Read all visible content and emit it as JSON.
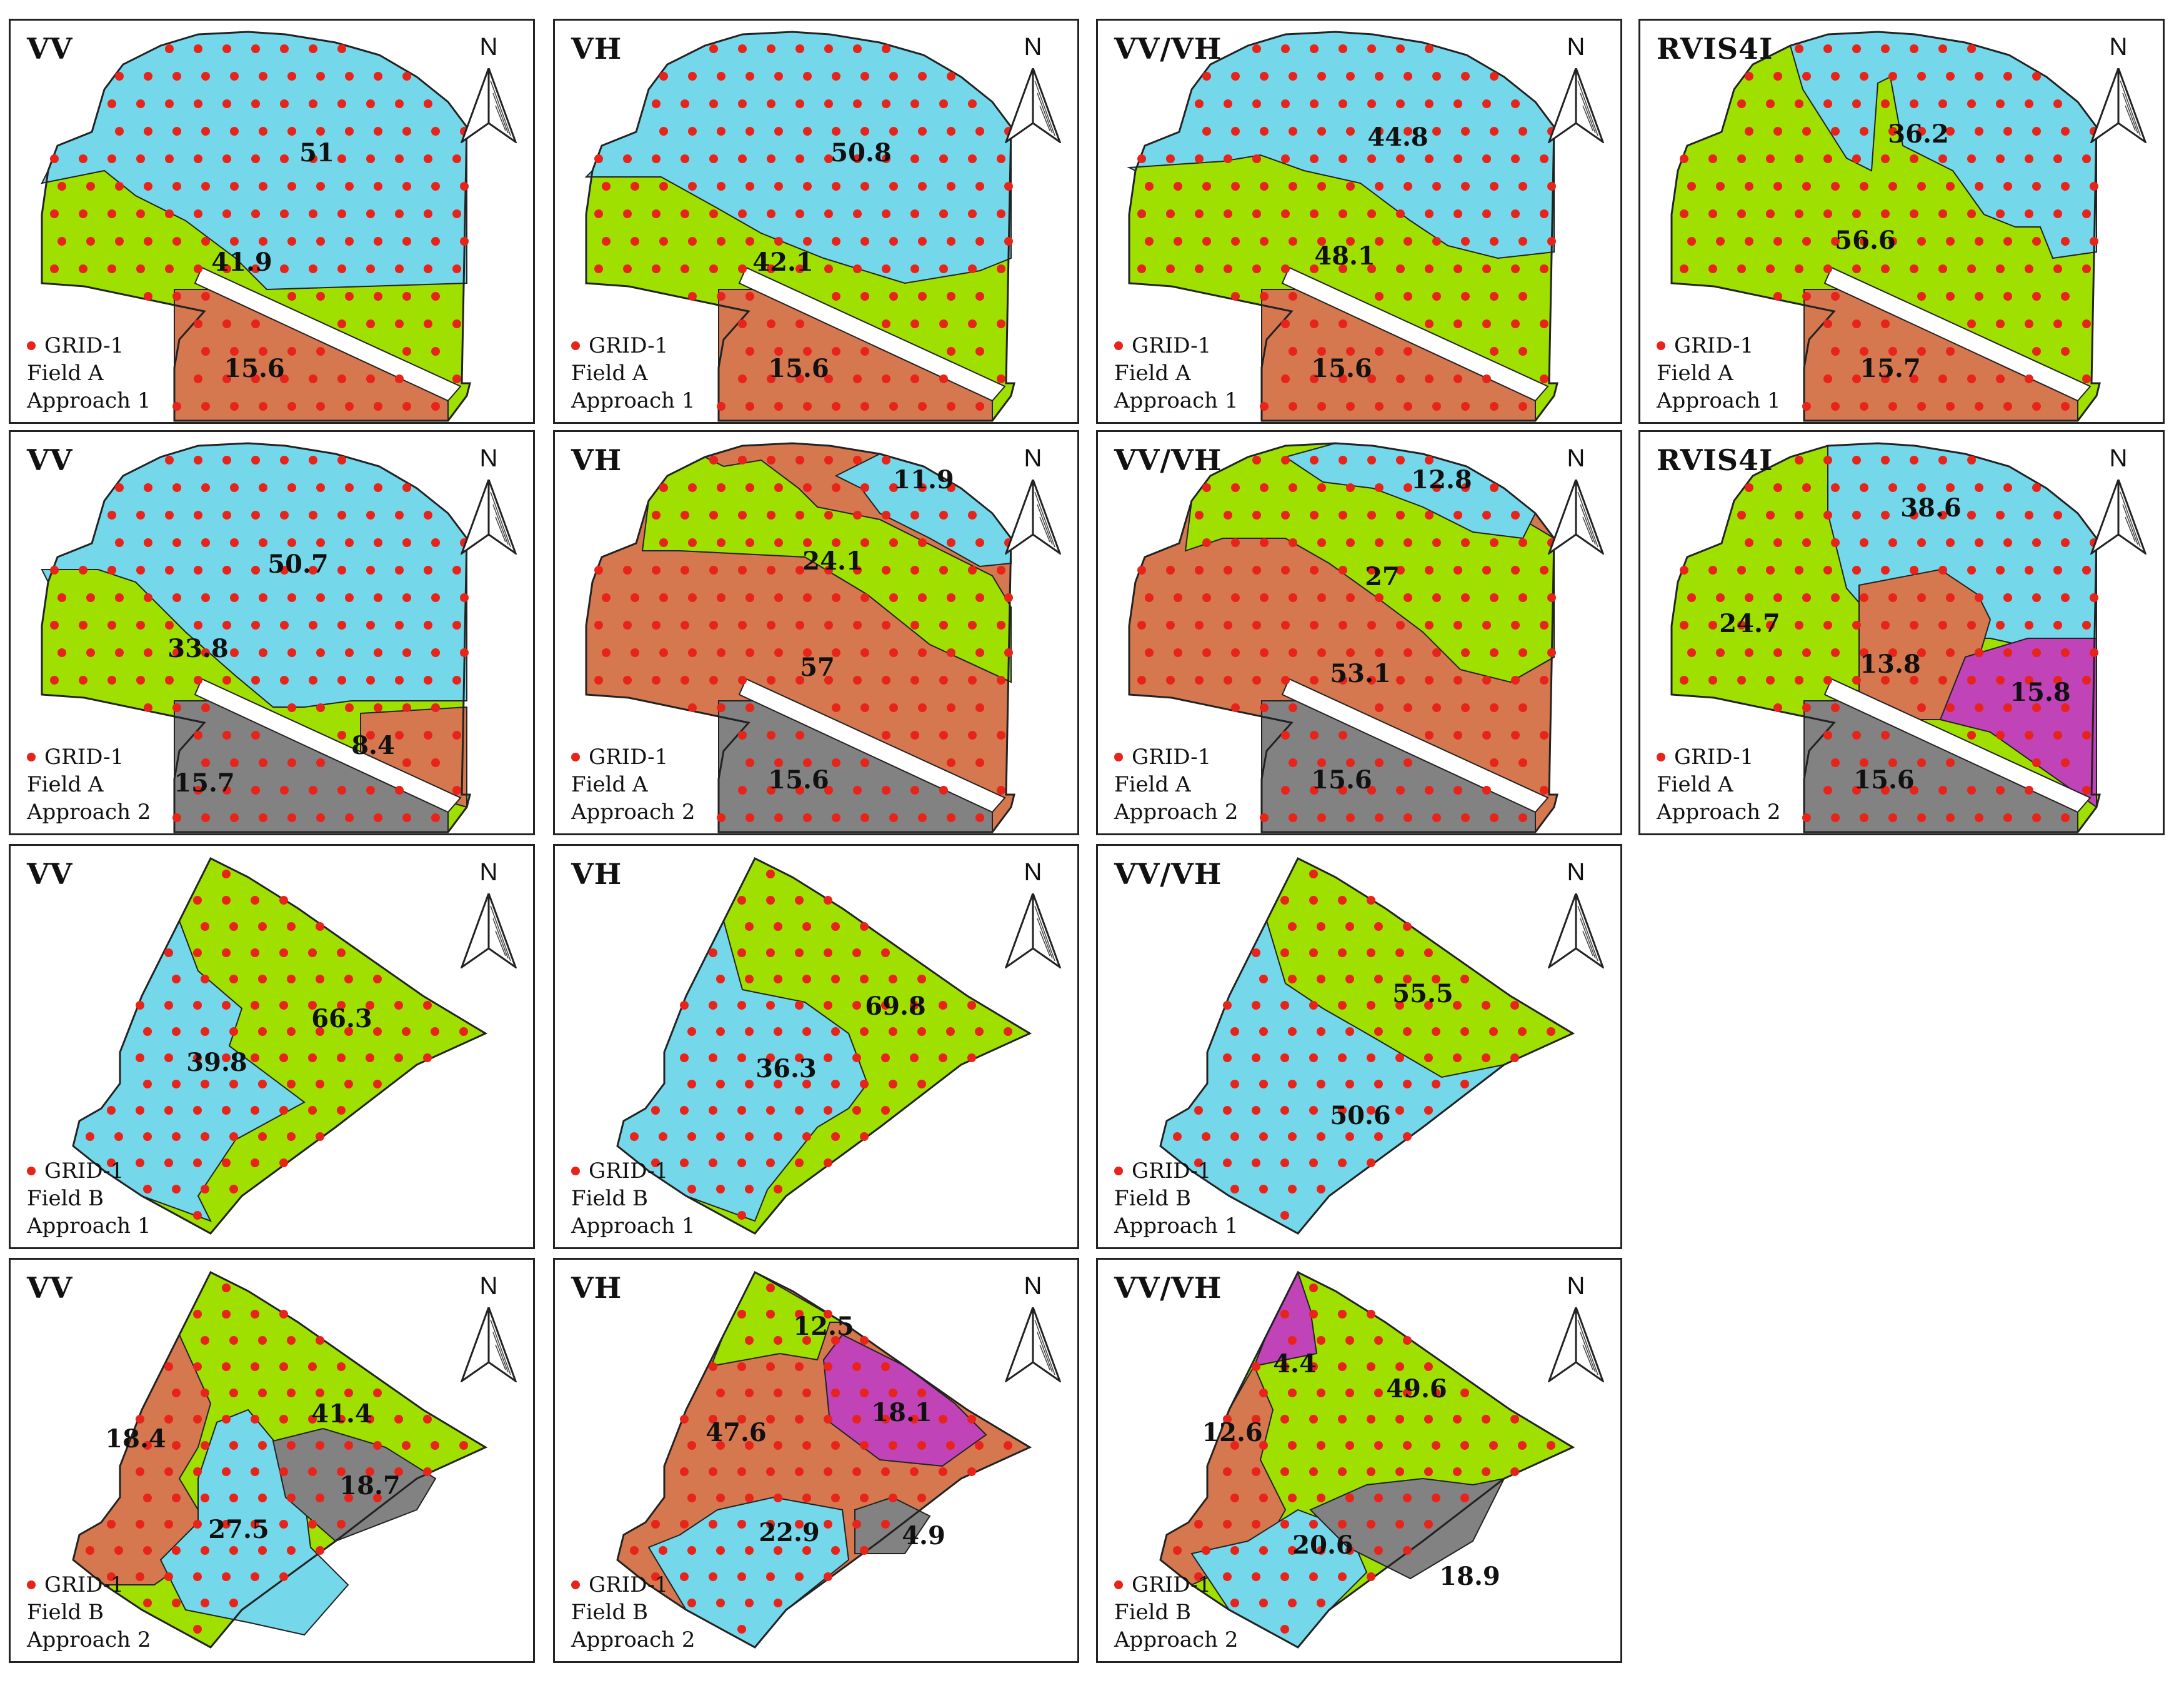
{
  "colors": {
    "blue": "#74d8ea",
    "green": "#9fe000",
    "brown": "#d5784f",
    "gray": "#828282",
    "magenta": "#c043b8",
    "dot": "#e8231a"
  },
  "legend_label": "GRID-1",
  "north_label": "N",
  "panels": [
    {
      "title": "VV",
      "field": "Field A",
      "approach": "Approach 1",
      "labels": [
        "51",
        "41.9",
        "15.6"
      ]
    },
    {
      "title": "VH",
      "field": "Field A",
      "approach": "Approach 1",
      "labels": [
        "50.8",
        "42.1",
        "15.6"
      ]
    },
    {
      "title": "VV/VH",
      "field": "Field A",
      "approach": "Approach 1",
      "labels": [
        "44.8",
        "48.1",
        "15.6"
      ]
    },
    {
      "title": "RVIS4I",
      "field": "Field A",
      "approach": "Approach 1",
      "labels": [
        "36.2",
        "56.6",
        "15.7"
      ]
    },
    {
      "title": "VV",
      "field": "Field A",
      "approach": "Approach 2",
      "labels": [
        "50.7",
        "33.8",
        "8.4",
        "15.7"
      ]
    },
    {
      "title": "VH",
      "field": "Field A",
      "approach": "Approach 2",
      "labels": [
        "11.9",
        "24.1",
        "57",
        "15.6"
      ]
    },
    {
      "title": "VV/VH",
      "field": "Field A",
      "approach": "Approach 2",
      "labels": [
        "12.8",
        "27",
        "53.1",
        "15.6"
      ]
    },
    {
      "title": "RVIS4I",
      "field": "Field A",
      "approach": "Approach 2",
      "labels": [
        "38.6",
        "24.7",
        "13.8",
        "15.8",
        "15.6"
      ]
    },
    {
      "title": "VV",
      "field": "Field B",
      "approach": "Approach 1",
      "labels": [
        "66.3",
        "39.8"
      ]
    },
    {
      "title": "VH",
      "field": "Field B",
      "approach": "Approach 1",
      "labels": [
        "69.8",
        "36.3"
      ]
    },
    {
      "title": "VV/VH",
      "field": "Field B",
      "approach": "Approach 1",
      "labels": [
        "55.5",
        "50.6"
      ]
    },
    {
      "title": "VV",
      "field": "Field B",
      "approach": "Approach 2",
      "labels": [
        "41.4",
        "18.4",
        "18.7",
        "27.5"
      ]
    },
    {
      "title": "VH",
      "field": "Field B",
      "approach": "Approach 2",
      "labels": [
        "12.5",
        "18.1",
        "47.6",
        "22.9",
        "4.9"
      ]
    },
    {
      "title": "VV/VH",
      "field": "Field B",
      "approach": "Approach 2",
      "labels": [
        "4.4",
        "49.6",
        "12.6",
        "20.6",
        "18.9"
      ]
    }
  ]
}
